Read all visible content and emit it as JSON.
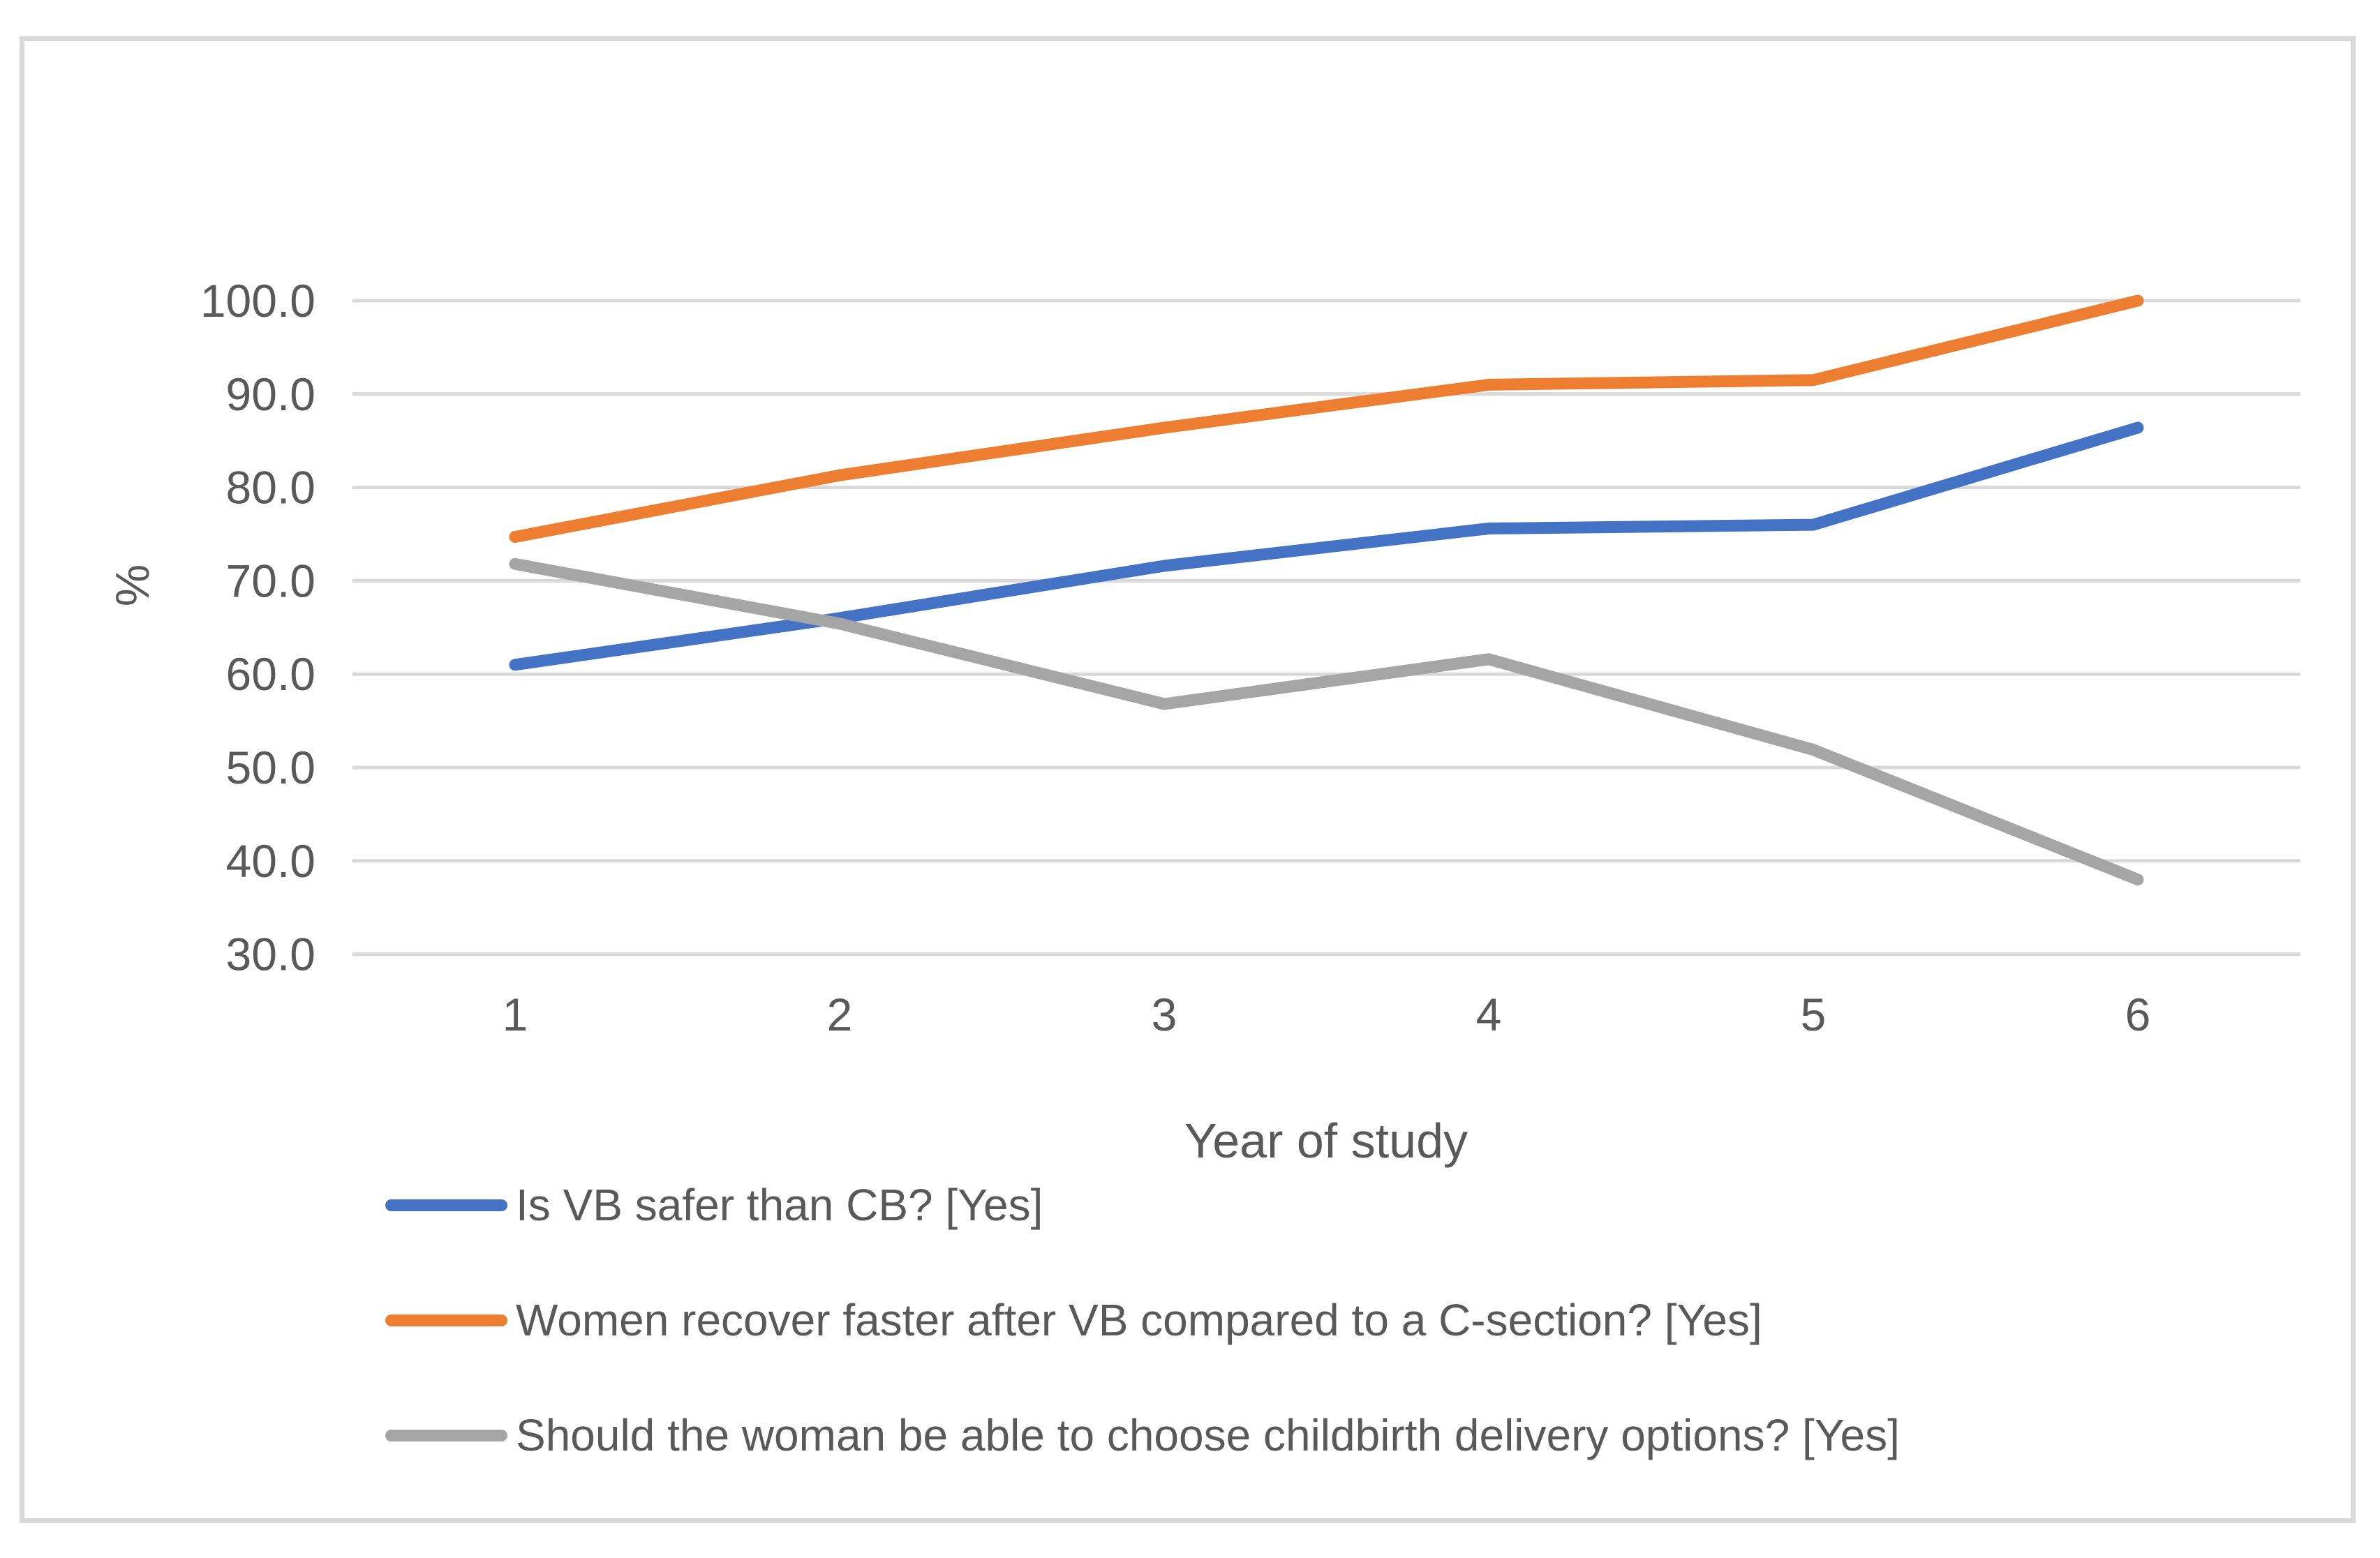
{
  "chart_data": {
    "type": "line",
    "title": "",
    "xlabel": "Year of study",
    "ylabel": "%",
    "categories": [
      "1",
      "2",
      "3",
      "4",
      "5",
      "6"
    ],
    "y_ticks": [
      "100.0",
      "90.0",
      "80.0",
      "70.0",
      "60.0",
      "50.0",
      "40.0",
      "30.0"
    ],
    "ylim": [
      30,
      100
    ],
    "grid": true,
    "legend_position": "bottom-left",
    "series": [
      {
        "name": "Is VB safer than CB? [Yes]",
        "color": "#4472C4",
        "values": [
          61.0,
          66.0,
          71.6,
          75.6,
          76.0,
          86.4
        ]
      },
      {
        "name": "Women recover faster after VB compared to a C-section? [Yes]",
        "color": "#ED7D31",
        "values": [
          74.7,
          81.3,
          86.4,
          91.0,
          91.5,
          100.0
        ]
      },
      {
        "name": "Should the woman be able to choose childbirth delivery options? [Yes]",
        "color": "#A5A5A5",
        "values": [
          71.8,
          65.4,
          56.8,
          61.6,
          51.9,
          38.0
        ]
      }
    ]
  },
  "colors": {
    "text": "#595959",
    "gridline": "#D9D9D9",
    "frame": "#D9D9D9",
    "background": "#FFFFFF"
  }
}
